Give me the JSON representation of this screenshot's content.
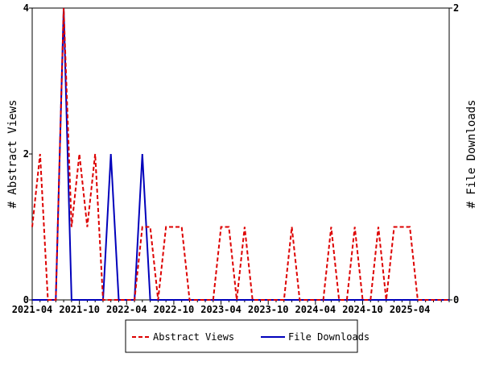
{
  "chart_data": {
    "type": "line",
    "title": "",
    "xlabel": "",
    "ylabel": "# Abstract Views",
    "y2label": "# File Downloads",
    "ylim": [
      0,
      4
    ],
    "y2lim": [
      0,
      2
    ],
    "yticks": [
      "0",
      "2",
      "4"
    ],
    "y2ticks": [
      "0",
      "2"
    ],
    "x_start": "2021-04",
    "x_end": "2025-09",
    "xtick_labels": [
      "2021-04",
      "2021-10",
      "2022-04",
      "2022-10",
      "2023-04",
      "2023-10",
      "2024-04",
      "2024-10",
      "2025-04"
    ],
    "legend_position": "bottom-center",
    "series": [
      {
        "name": "Abstract Views",
        "axis": "left",
        "color": "#dd0000",
        "style": "dashed",
        "values": [
          1,
          2,
          0,
          0,
          4,
          1,
          2,
          1,
          2,
          0,
          0,
          0,
          0,
          0,
          1,
          1,
          0,
          1,
          1,
          1,
          0,
          0,
          0,
          0,
          1,
          1,
          0,
          1,
          0,
          0,
          0,
          0,
          0,
          1,
          0,
          0,
          0,
          0,
          1,
          0,
          0,
          1,
          0,
          0,
          1,
          0,
          1,
          1,
          1,
          0,
          0,
          0,
          0,
          0
        ]
      },
      {
        "name": "File Downloads",
        "axis": "right",
        "color": "#0000bb",
        "style": "solid",
        "values": [
          0,
          0,
          0,
          0,
          2,
          0,
          0,
          0,
          0,
          0,
          1,
          0,
          0,
          0,
          1,
          0,
          0,
          0,
          0,
          0,
          0,
          0,
          0,
          0,
          0,
          0,
          0,
          0,
          0,
          0,
          0,
          0,
          0,
          0,
          0,
          0,
          0,
          0,
          0,
          0,
          0,
          0,
          0,
          0,
          0,
          0,
          0,
          0,
          0,
          0,
          0,
          0,
          0,
          0
        ]
      }
    ]
  }
}
